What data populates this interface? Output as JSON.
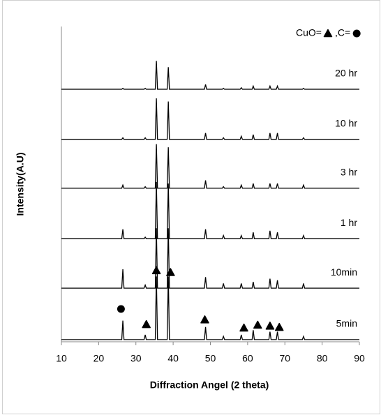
{
  "chart_data": {
    "type": "line",
    "x_label": "Diffraction Angel (2 theta)",
    "y_label": "Intensity(A.U)",
    "xlim": [
      10,
      90
    ],
    "xticks": [
      10,
      20,
      30,
      40,
      50,
      60,
      70,
      80,
      90
    ],
    "ylim": [
      0,
      100
    ],
    "x": [
      10,
      26.2,
      26.5,
      26.8,
      32.2,
      32.5,
      32.8,
      35.2,
      35.5,
      35.8,
      38.4,
      38.7,
      39.0,
      48.4,
      48.7,
      49.0,
      53.2,
      53.5,
      53.8,
      58.0,
      58.3,
      58.6,
      61.2,
      61.5,
      61.8,
      65.7,
      66.0,
      66.3,
      67.7,
      68.0,
      68.3,
      74.7,
      75.0,
      75.3,
      90
    ],
    "series": [
      {
        "name": "5min",
        "color": "#000000",
        "values": [
          0.7,
          0.7,
          6.7,
          0.7,
          0.7,
          2.2,
          0.7,
          0.7,
          20.7,
          0.7,
          0.7,
          20.7,
          0.7,
          0.7,
          4.7,
          0.7,
          0.7,
          1.7,
          0.7,
          0.7,
          2.2,
          0.7,
          0.7,
          3.7,
          0.7,
          0.7,
          3.2,
          0.7,
          0.7,
          3.2,
          0.7,
          0.7,
          1.7,
          0.7,
          0.7
        ]
      },
      {
        "name": "10min",
        "color": "#000000",
        "values": [
          17,
          17,
          23,
          17,
          17,
          18,
          17,
          17,
          36,
          17,
          17,
          36,
          17,
          17,
          20.5,
          17,
          17,
          18.5,
          17,
          17,
          18.5,
          17,
          17,
          19,
          17,
          17,
          20,
          17,
          17,
          19.5,
          17,
          17,
          18.5,
          17,
          17
        ]
      },
      {
        "name": "1 hr",
        "color": "#000000",
        "values": [
          32.7,
          32.7,
          35.7,
          32.7,
          32.7,
          33.2,
          32.7,
          32.7,
          50.7,
          32.7,
          32.7,
          50.2,
          32.7,
          32.7,
          35.7,
          32.7,
          32.7,
          33.7,
          32.7,
          32.7,
          33.7,
          32.7,
          32.7,
          34.7,
          32.7,
          32.7,
          35.2,
          32.7,
          32.7,
          34.7,
          32.7,
          32.7,
          33.7,
          32.7,
          32.7
        ]
      },
      {
        "name": "3 hr",
        "color": "#000000",
        "values": [
          48.7,
          48.7,
          49.7,
          48.7,
          48.7,
          49.2,
          48.7,
          48.7,
          62.7,
          48.7,
          48.7,
          61.7,
          48.7,
          48.7,
          51.2,
          48.7,
          48.7,
          49.2,
          48.7,
          48.7,
          49.7,
          48.7,
          48.7,
          50.2,
          48.7,
          48.7,
          50.2,
          48.7,
          48.7,
          50.2,
          48.7,
          48.7,
          49.7,
          48.7,
          48.7
        ]
      },
      {
        "name": "10 hr",
        "color": "#000000",
        "values": [
          64.2,
          64.2,
          64.7,
          64.2,
          64.2,
          64.7,
          64.2,
          64.2,
          77.2,
          64.2,
          64.2,
          76.2,
          64.2,
          64.2,
          66.2,
          64.2,
          64.2,
          64.7,
          64.2,
          64.2,
          65.2,
          64.2,
          64.2,
          65.7,
          64.2,
          64.2,
          66.2,
          64.2,
          64.2,
          66.2,
          64.2,
          64.2,
          64.7,
          64.2,
          64.2
        ]
      },
      {
        "name": "20 hr",
        "color": "#000000",
        "values": [
          80.1,
          80.1,
          80.4,
          80.1,
          80.1,
          80.4,
          80.1,
          80.1,
          89.1,
          80.1,
          80.1,
          87.1,
          80.1,
          80.1,
          81.6,
          80.1,
          80.1,
          80.4,
          80.1,
          80.1,
          80.6,
          80.1,
          80.1,
          81.1,
          80.1,
          80.1,
          81.1,
          80.1,
          80.1,
          81.1,
          80.1,
          80.1,
          80.4,
          80.1,
          80.1
        ]
      }
    ],
    "legend": [
      {
        "label": "CuO=",
        "shape": "triangle"
      },
      {
        "label": ",C=",
        "shape": "circle"
      }
    ],
    "markers": [
      {
        "x": 26,
        "y": 10.4,
        "shape": "circle"
      },
      {
        "x": 32.8,
        "y": 5.5,
        "shape": "triangle"
      },
      {
        "x": 35.5,
        "y": 22.6,
        "shape": "triangle"
      },
      {
        "x": 39.3,
        "y": 22,
        "shape": "triangle"
      },
      {
        "x": 48.5,
        "y": 7,
        "shape": "triangle"
      },
      {
        "x": 59,
        "y": 4.4,
        "shape": "triangle"
      },
      {
        "x": 62.7,
        "y": 5.3,
        "shape": "triangle"
      },
      {
        "x": 66,
        "y": 5,
        "shape": "triangle"
      },
      {
        "x": 68.5,
        "y": 4.6,
        "shape": "triangle"
      }
    ]
  }
}
